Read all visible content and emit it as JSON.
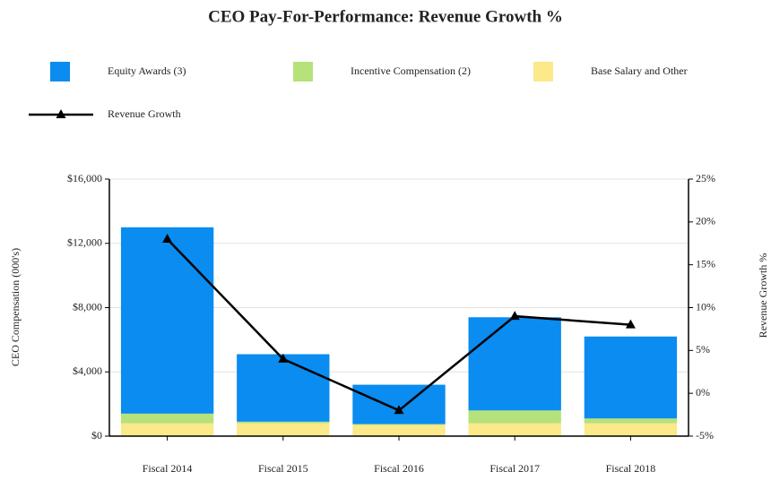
{
  "chart_data": {
    "type": "bar",
    "title": "CEO Pay-For-Performance: Revenue Growth %",
    "categories": [
      "Fiscal 2014",
      "Fiscal 2015",
      "Fiscal 2016",
      "Fiscal 2017",
      "Fiscal 2018"
    ],
    "series": [
      {
        "name": "Equity Awards (3)",
        "color": "#0a8cf0",
        "values": [
          11600,
          4200,
          2450,
          5800,
          5100
        ]
      },
      {
        "name": "Incentive Compensation (2)",
        "color": "#b5e27a",
        "values": [
          600,
          100,
          50,
          800,
          300
        ]
      },
      {
        "name": "Base Salary and Other",
        "color": "#fbe98a",
        "values": [
          800,
          800,
          700,
          800,
          800
        ]
      },
      {
        "name": "Revenue Growth",
        "type": "line",
        "axis": "y2",
        "color": "#000000",
        "values": [
          18,
          4,
          -2,
          9,
          8
        ]
      }
    ],
    "ylabel": "CEO Compensation (000's)",
    "y2label": "Revenue Growth %",
    "ylim": [
      0,
      16000
    ],
    "yticks": [
      {
        "value": 0,
        "label": "$0"
      },
      {
        "value": 4000,
        "label": "$4,000"
      },
      {
        "value": 8000,
        "label": "$8,000"
      },
      {
        "value": 12000,
        "label": "$12,000"
      },
      {
        "value": 16000,
        "label": "$16,000"
      }
    ],
    "y2lim": [
      -5,
      25
    ],
    "y2ticks": [
      {
        "value": -5,
        "label": "-5%"
      },
      {
        "value": 0,
        "label": "0%"
      },
      {
        "value": 5,
        "label": "5%"
      },
      {
        "value": 10,
        "label": "10%"
      },
      {
        "value": 15,
        "label": "15%"
      },
      {
        "value": 20,
        "label": "20%"
      },
      {
        "value": 25,
        "label": "25%"
      }
    ],
    "grid": true
  }
}
